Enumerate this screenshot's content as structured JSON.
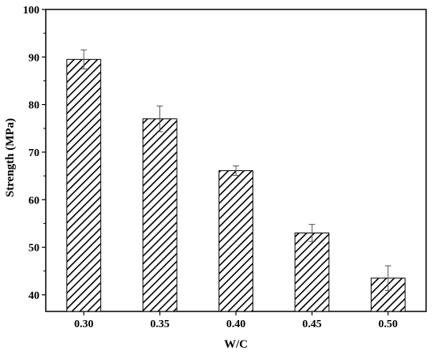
{
  "chart_data": {
    "type": "bar",
    "title": "",
    "xlabel": "W/C",
    "ylabel": "Strength (MPa)",
    "categories": [
      "0.30",
      "0.35",
      "0.40",
      "0.45",
      "0.50"
    ],
    "values": [
      89.5,
      77.0,
      66.1,
      53.0,
      43.5
    ],
    "error": [
      2.0,
      2.7,
      1.0,
      1.8,
      2.6
    ],
    "ylim": [
      36.5,
      100
    ],
    "yticks": [
      40,
      50,
      60,
      70,
      80,
      90,
      100
    ],
    "bar_fill": "diagonal-hatch",
    "colors": {
      "axis": "#000000",
      "bar_stroke": "#000000",
      "hatch": "#000000",
      "error_bar": "#555555"
    },
    "grid": false,
    "legend": "none"
  }
}
